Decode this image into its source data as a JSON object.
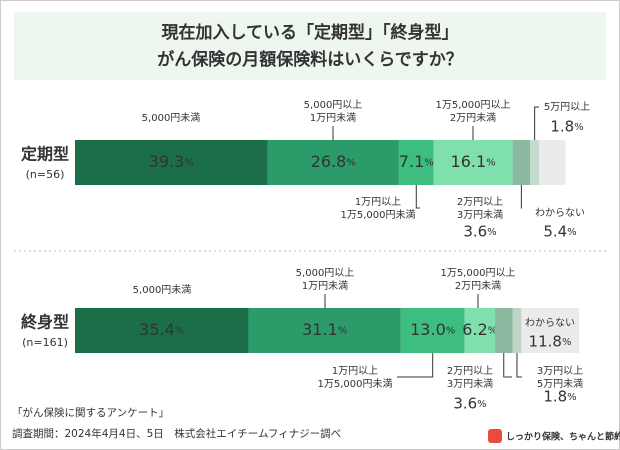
{
  "title": [
    "現在加入している「定期型」「終身型」",
    "がん保険の月額保険料はいくらですか？"
  ],
  "chart_data": {
    "type": "stacked-bar",
    "unit": "%",
    "groups": [
      {
        "name": "定期型",
        "n": "(n=56)",
        "segments": [
          {
            "label": [
              "5,000円未満"
            ],
            "value": 39.3,
            "color": "#1b6e47"
          },
          {
            "label": [
              "5,000円以上",
              "1万円未満"
            ],
            "value": 26.8,
            "color": "#2b9b6a"
          },
          {
            "label": [
              "1万円以上",
              "1万5,000円未満"
            ],
            "value": 7.1,
            "color": "#3dbd80"
          },
          {
            "label": [
              "1万5,000円以上",
              "2万円未満"
            ],
            "value": 16.1,
            "color": "#7fe0ae"
          },
          {
            "label": [
              "2万円以上",
              "3万円未満"
            ],
            "value": 3.6,
            "color": "#8bb89e"
          },
          {
            "label": [
              "5万円以上"
            ],
            "value": 1.8,
            "color": "#c3dccd"
          },
          {
            "label": [
              "わからない"
            ],
            "value": 5.4,
            "color": "#ebebeb"
          }
        ]
      },
      {
        "name": "終身型",
        "n": "(n=161)",
        "segments": [
          {
            "label": [
              "5,000円未満"
            ],
            "value": 35.4,
            "color": "#1b6e47"
          },
          {
            "label": [
              "5,000円以上",
              "1万円未満"
            ],
            "value": 31.1,
            "color": "#2b9b6a"
          },
          {
            "label": [
              "1万円以上",
              "1万5,000円未満"
            ],
            "value": 13.0,
            "value_label": "13.0",
            "color": "#3dbd80"
          },
          {
            "label": [
              "1万5,000円以上",
              "2万円未満"
            ],
            "value": 6.2,
            "color": "#7fe0ae"
          },
          {
            "label": [
              "2万円以上",
              "3万円未満"
            ],
            "value": 3.6,
            "color": "#8bb89e"
          },
          {
            "label": [
              "3万円以上",
              "5万円未満"
            ],
            "value": 1.8,
            "color": "#bcd5c6"
          },
          {
            "label": [
              "わからない"
            ],
            "value": 11.8,
            "color": "#ebebeb"
          }
        ]
      }
    ]
  },
  "source": "「がん保険に関するアンケート」",
  "period": "調査期間：2024年4月4日、5日　株式会社エイチームフィナジー調べ",
  "logo": "しっかり保険、ちゃんと節約。"
}
